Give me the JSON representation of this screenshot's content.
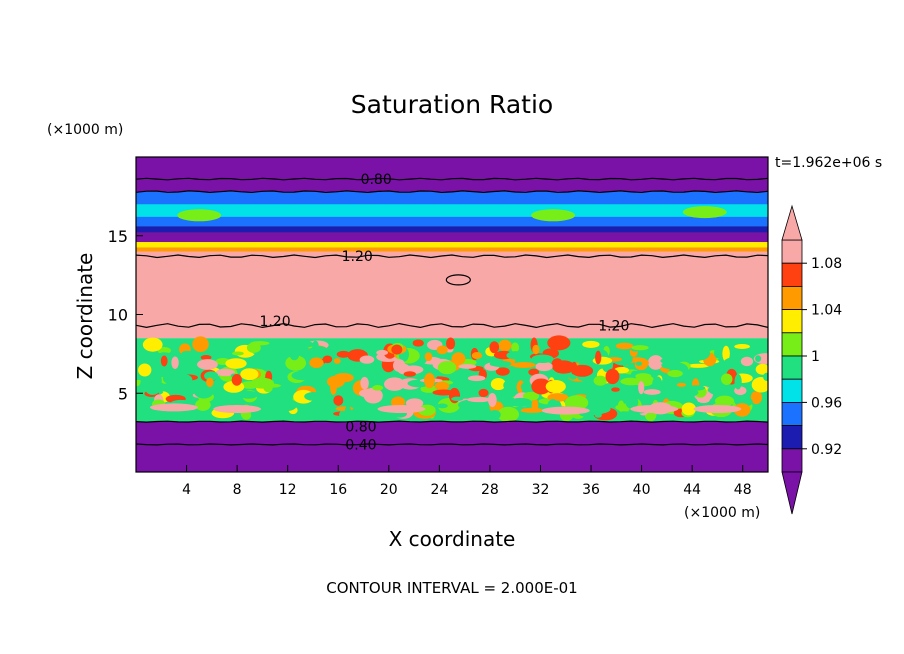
{
  "chart_data": {
    "type": "heatmap",
    "title": "Saturation Ratio",
    "xlabel": "X coordinate",
    "ylabel": "Z coordinate",
    "x_unit_label": "(×1000 m)",
    "y_unit_label": "(×1000 m)",
    "time_label": "t=1.962e+06 s",
    "footer": "CONTOUR INTERVAL = 2.000E-01",
    "xlim": [
      0,
      50
    ],
    "ylim": [
      0,
      20
    ],
    "x_ticks": [
      4,
      8,
      12,
      16,
      20,
      24,
      28,
      32,
      36,
      40,
      44,
      48
    ],
    "y_ticks": [
      5,
      10,
      15
    ],
    "colorbar": {
      "levels": [
        0.92,
        0.96,
        1,
        1.04,
        1.08
      ],
      "level_labels": [
        "0.92",
        "0.96",
        "1",
        "1.04",
        "1.08"
      ],
      "colors": [
        "#7a12a8",
        "#1c1cb0",
        "#1a72ff",
        "#00e2e8",
        "#20e080",
        "#78ee18",
        "#ffee00",
        "#ff9a00",
        "#ff4010",
        "#f9a8a8"
      ]
    },
    "bands": [
      {
        "z": [
          0,
          3.2
        ],
        "value": 0.4,
        "color": "#7a12a8"
      },
      {
        "z": [
          3.2,
          8.5
        ],
        "value": 1.0,
        "color": "#20e080"
      },
      {
        "z": [
          8.5,
          14.0
        ],
        "value": 1.2,
        "color": "#f9a8a8"
      },
      {
        "z": [
          14.0,
          15.4
        ],
        "value": 1.0,
        "color": "#ff4010"
      },
      {
        "z": [
          15.4,
          17.8
        ],
        "value": 0.96,
        "color": "#00e2e8"
      },
      {
        "z": [
          17.8,
          20
        ],
        "value": 0.8,
        "color": "#7a12a8"
      }
    ],
    "contour_labels": [
      {
        "text": "0.80",
        "x": 19.0,
        "z": 18.6
      },
      {
        "text": "1.20",
        "x": 17.5,
        "z": 13.7
      },
      {
        "text": "1.20",
        "x": 11.0,
        "z": 9.6
      },
      {
        "text": "1.20",
        "x": 37.8,
        "z": 9.3
      },
      {
        "text": "0.80",
        "x": 17.8,
        "z": 2.9
      },
      {
        "text": "0.40",
        "x": 17.8,
        "z": 1.75
      }
    ]
  }
}
